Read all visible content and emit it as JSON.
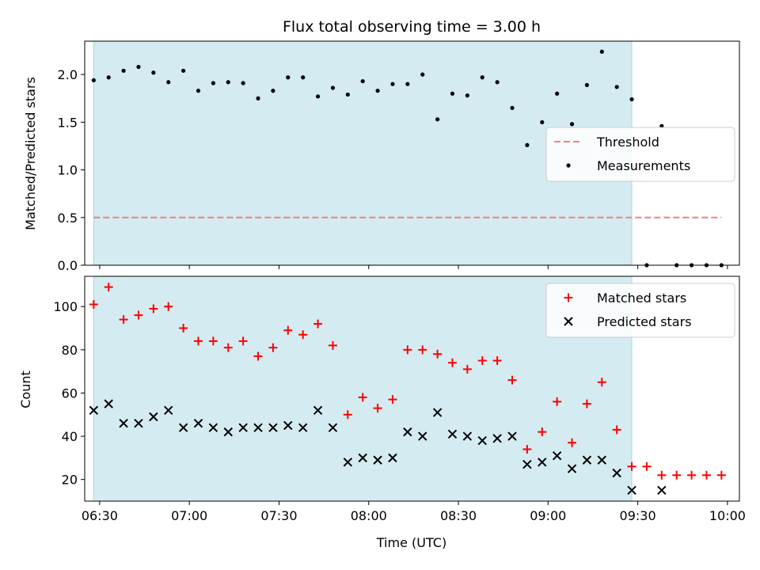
{
  "chart_data": [
    {
      "type": "scatter",
      "title": "Flux total observing time = 3.00 h",
      "ylabel": "Matched/Predicted stars",
      "xlabel": "",
      "xlim": [
        "06:25",
        "10:04"
      ],
      "ylim": [
        0,
        2.35
      ],
      "yticks": [
        0.0,
        0.5,
        1.0,
        1.5,
        2.0
      ],
      "ytick_labels": [
        "0.0",
        "0.5",
        "1.0",
        "1.5",
        "2.0"
      ],
      "shaded_span": [
        "06:28",
        "09:28"
      ],
      "shade_color": "#d4ebf1",
      "legend_position": "center-right",
      "series": [
        {
          "name": "Threshold",
          "kind": "dashed-line",
          "color": "#f47f7f",
          "x": [
            "06:28",
            "09:58"
          ],
          "y": [
            0.5,
            0.5
          ]
        },
        {
          "name": "Measurements",
          "kind": "dot",
          "color": "#000000",
          "x": [
            "06:28",
            "06:33",
            "06:38",
            "06:43",
            "06:48",
            "06:53",
            "06:58",
            "07:03",
            "07:08",
            "07:13",
            "07:18",
            "07:23",
            "07:28",
            "07:33",
            "07:38",
            "07:43",
            "07:48",
            "07:53",
            "07:58",
            "08:03",
            "08:08",
            "08:13",
            "08:18",
            "08:23",
            "08:28",
            "08:33",
            "08:38",
            "08:43",
            "08:48",
            "08:53",
            "08:58",
            "09:03",
            "09:08",
            "09:13",
            "09:18",
            "09:23",
            "09:28",
            "09:33",
            "09:38",
            "09:43",
            "09:48",
            "09:53",
            "09:58"
          ],
          "y": [
            1.94,
            1.97,
            2.04,
            2.08,
            2.02,
            1.92,
            2.04,
            1.83,
            1.91,
            1.92,
            1.91,
            1.75,
            1.83,
            1.97,
            1.97,
            1.77,
            1.86,
            1.79,
            1.93,
            1.83,
            1.9,
            1.9,
            2.0,
            1.53,
            1.8,
            1.78,
            1.97,
            1.92,
            1.65,
            1.26,
            1.5,
            1.8,
            1.48,
            1.89,
            2.24,
            1.87,
            1.74,
            0.0,
            1.46,
            0.0,
            0.0,
            0.0,
            0.0
          ]
        }
      ]
    },
    {
      "type": "scatter",
      "title": "",
      "xlabel": "Time (UTC)",
      "ylabel": "Count",
      "xlim": [
        "06:25",
        "10:04"
      ],
      "ylim": [
        10,
        114
      ],
      "xticks": [
        "06:30",
        "07:00",
        "07:30",
        "08:00",
        "08:30",
        "09:00",
        "09:30",
        "10:00"
      ],
      "yticks": [
        20,
        40,
        60,
        80,
        100
      ],
      "ytick_labels": [
        "20",
        "40",
        "60",
        "80",
        "100"
      ],
      "shaded_span": [
        "06:28",
        "09:28"
      ],
      "shade_color": "#d4ebf1",
      "legend_position": "top-right",
      "series": [
        {
          "name": "Matched stars",
          "kind": "plus",
          "color": "#ff0000",
          "x": [
            "06:28",
            "06:33",
            "06:38",
            "06:43",
            "06:48",
            "06:53",
            "06:58",
            "07:03",
            "07:08",
            "07:13",
            "07:18",
            "07:23",
            "07:28",
            "07:33",
            "07:38",
            "07:43",
            "07:48",
            "07:53",
            "07:58",
            "08:03",
            "08:08",
            "08:13",
            "08:18",
            "08:23",
            "08:28",
            "08:33",
            "08:38",
            "08:43",
            "08:48",
            "08:53",
            "08:58",
            "09:03",
            "09:08",
            "09:13",
            "09:18",
            "09:23",
            "09:28",
            "09:33",
            "09:38",
            "09:43",
            "09:48",
            "09:53",
            "09:58"
          ],
          "y": [
            101,
            109,
            94,
            96,
            99,
            100,
            90,
            84,
            84,
            81,
            84,
            77,
            81,
            89,
            87,
            92,
            82,
            50,
            58,
            53,
            57,
            80,
            80,
            78,
            74,
            71,
            75,
            75,
            66,
            34,
            42,
            56,
            37,
            55,
            65,
            43,
            26,
            26,
            22,
            22,
            22,
            22,
            22
          ]
        },
        {
          "name": "Predicted stars",
          "kind": "x",
          "color": "#000000",
          "x": [
            "06:28",
            "06:33",
            "06:38",
            "06:43",
            "06:48",
            "06:53",
            "06:58",
            "07:03",
            "07:08",
            "07:13",
            "07:18",
            "07:23",
            "07:28",
            "07:33",
            "07:38",
            "07:43",
            "07:48",
            "07:53",
            "07:58",
            "08:03",
            "08:08",
            "08:13",
            "08:18",
            "08:23",
            "08:28",
            "08:33",
            "08:38",
            "08:43",
            "08:48",
            "08:53",
            "08:58",
            "09:03",
            "09:08",
            "09:13",
            "09:18",
            "09:23",
            "09:28",
            "09:38"
          ],
          "y": [
            52,
            55,
            46,
            46,
            49,
            52,
            44,
            46,
            44,
            42,
            44,
            44,
            44,
            45,
            44,
            52,
            44,
            28,
            30,
            29,
            30,
            42,
            40,
            51,
            41,
            40,
            38,
            39,
            40,
            27,
            28,
            31,
            25,
            29,
            29,
            23,
            15,
            15
          ]
        }
      ]
    }
  ]
}
